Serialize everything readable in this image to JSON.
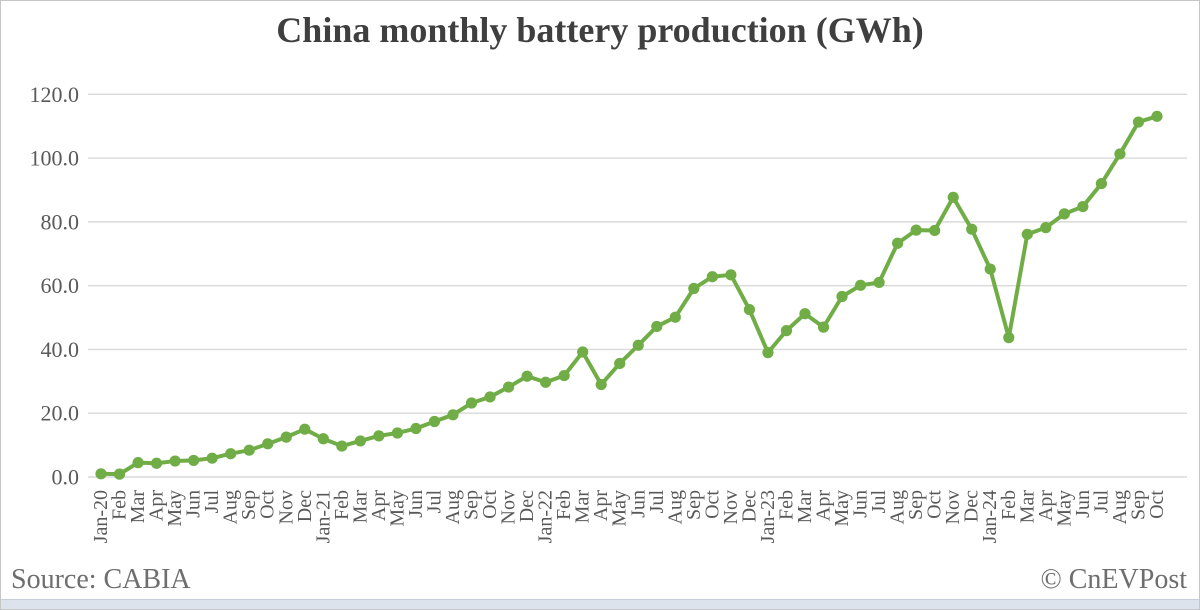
{
  "page": {
    "title": "China monthly battery production (GWh)",
    "source": "Source: CABIA",
    "copyright": "© CnEVPost"
  },
  "colors": {
    "line": "#70AD47",
    "gridline": "#d9d9d9",
    "axis_text": "#595959",
    "title_text": "#3f3f3f",
    "footer_text": "#6e6e6e",
    "bottom_bar": "#dde3ec"
  },
  "chart_data": {
    "type": "line",
    "title": "China monthly battery production (GWh)",
    "xlabel": "",
    "ylabel": "",
    "ylim": [
      0,
      120
    ],
    "ytick_step": 20,
    "ytick_decimals": 1,
    "grid": true,
    "legend_position": "none",
    "marker": "circle",
    "categories": [
      "Jan-20",
      "Feb",
      "Mar",
      "Apr",
      "May",
      "Jun",
      "Jul",
      "Aug",
      "Sep",
      "Oct",
      "Nov",
      "Dec",
      "Jan-21",
      "Feb",
      "Mar",
      "Apr",
      "May",
      "Jun",
      "Jul",
      "Aug",
      "Sep",
      "Oct",
      "Nov",
      "Dec",
      "Jan-22",
      "Feb",
      "Mar",
      "Apr",
      "May",
      "Jun",
      "Jul",
      "Aug",
      "Sep",
      "Oct",
      "Nov",
      "Dec",
      "Jan-23",
      "Feb",
      "Mar",
      "Apr",
      "May",
      "Jun",
      "Jul",
      "Aug",
      "Sep",
      "Oct",
      "Nov",
      "Dec",
      "Jan-24",
      "Feb",
      "Mar",
      "Apr",
      "May",
      "Jun",
      "Jul",
      "Aug",
      "Sep",
      "Oct"
    ],
    "series": [
      {
        "name": "Monthly battery production (GWh)",
        "values": [
          1.0,
          0.9,
          4.5,
          4.3,
          5.0,
          5.2,
          5.9,
          7.3,
          8.4,
          10.4,
          12.5,
          15.0,
          12.0,
          9.7,
          11.3,
          12.9,
          13.8,
          15.2,
          17.4,
          19.5,
          23.2,
          25.1,
          28.2,
          31.6,
          29.7,
          31.8,
          39.2,
          29.0,
          35.6,
          41.3,
          47.2,
          50.1,
          59.1,
          62.8,
          63.4,
          52.5,
          39.0,
          45.9,
          51.2,
          47.0,
          56.6,
          60.1,
          61.0,
          73.3,
          77.4,
          77.3,
          87.7,
          77.7,
          65.2,
          43.7,
          76.1,
          78.2,
          82.5,
          84.8,
          92.0,
          101.3,
          111.3,
          113.1
        ]
      }
    ]
  }
}
